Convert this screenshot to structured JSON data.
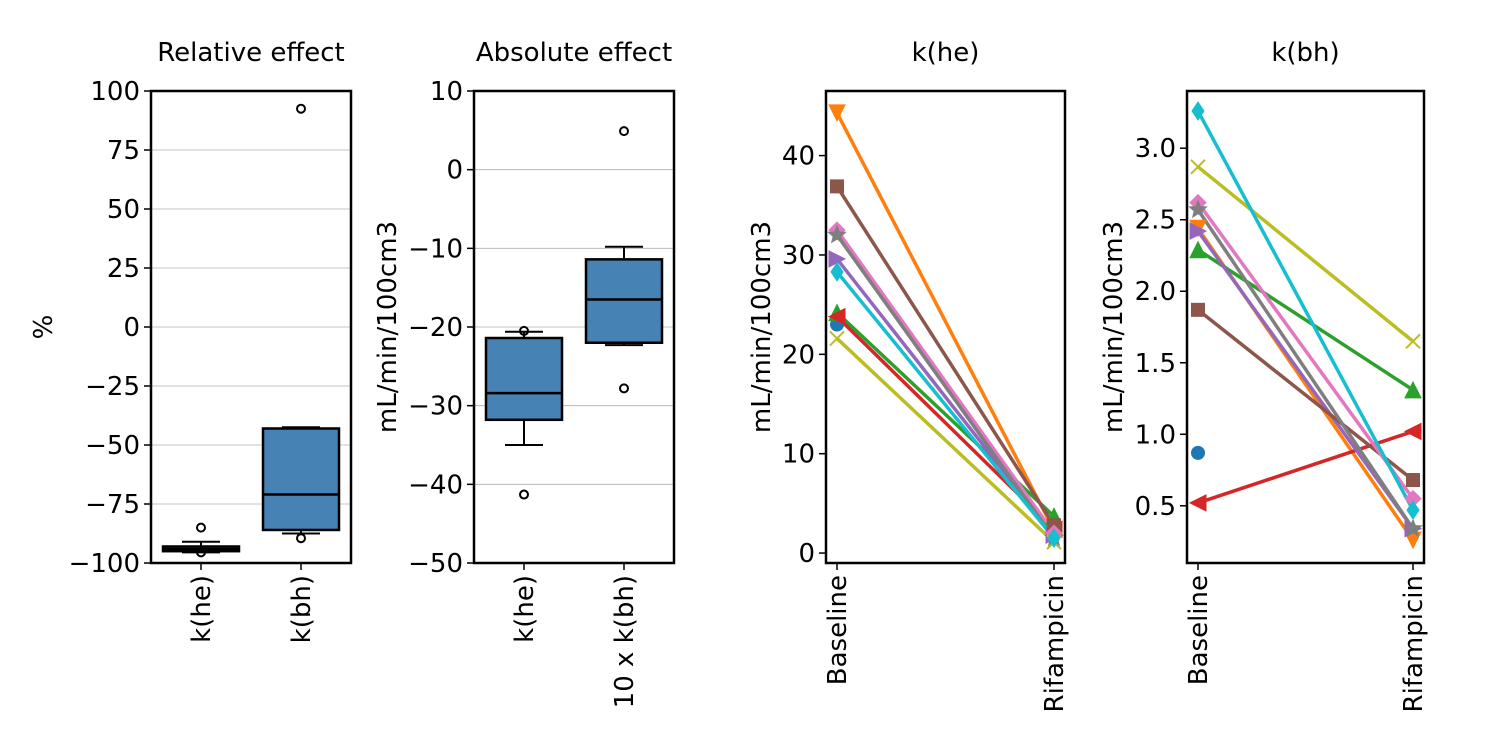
{
  "chart_data": [
    {
      "type": "box",
      "title": "Relative effect",
      "ylabel": "%",
      "xlabel": "",
      "categories": [
        "k(he)",
        "k(bh)"
      ],
      "ylim": [
        -100,
        100
      ],
      "yticks": [
        -100,
        -75,
        -50,
        -25,
        0,
        25,
        50,
        75,
        100
      ],
      "grid": "horizontal",
      "box_color": "#4682b4",
      "boxes": [
        {
          "whislo": -95.5,
          "q1": -95.0,
          "med": -94.0,
          "q3": -93.0,
          "whishi": -91.0,
          "fliers": [
            -85.0,
            -95.5
          ]
        },
        {
          "whislo": -87.5,
          "q1": -86.0,
          "med": -71.0,
          "q3": -43.0,
          "whishi": -42.5,
          "fliers": [
            92.5,
            -89.5
          ]
        }
      ]
    },
    {
      "type": "box",
      "title": "Absolute effect",
      "ylabel": "mL/min/100cm3",
      "xlabel": "",
      "categories": [
        "k(he)",
        "10 x k(bh)"
      ],
      "ylim": [
        -50,
        10
      ],
      "yticks": [
        -50,
        -40,
        -30,
        -20,
        -10,
        0,
        10
      ],
      "grid": "horizontal",
      "box_color": "#4682b4",
      "boxes": [
        {
          "whislo": -35.0,
          "q1": -31.8,
          "med": -28.4,
          "q3": -21.4,
          "whishi": -20.6,
          "fliers": [
            -20.5,
            -41.3
          ]
        },
        {
          "whislo": -22.3,
          "q1": -22.0,
          "med": -16.5,
          "q3": -11.4,
          "whishi": -9.8,
          "fliers": [
            4.9,
            -27.8
          ]
        }
      ]
    },
    {
      "type": "line",
      "title": "k(he)",
      "ylabel": "mL/min/100cm3",
      "xlabel": "",
      "categories": [
        "Baseline",
        "Rifampicin"
      ],
      "ylim": [
        -1,
        46.5
      ],
      "yticks": [
        0,
        10,
        20,
        30,
        40
      ],
      "grid": "off",
      "series": [
        {
          "color": "#1f77b4",
          "marker": "circle",
          "values": [
            23.0,
            null
          ]
        },
        {
          "color": "#ff7f0e",
          "marker": "triangle-down",
          "values": [
            44.3,
            2.3
          ]
        },
        {
          "color": "#2ca02c",
          "marker": "triangle-up",
          "values": [
            24.2,
            3.7
          ]
        },
        {
          "color": "#d62728",
          "marker": "triangle-left",
          "values": [
            23.8,
            2.4
          ]
        },
        {
          "color": "#9467bd",
          "marker": "triangle-right",
          "values": [
            29.6,
            1.8
          ]
        },
        {
          "color": "#8c564b",
          "marker": "square",
          "values": [
            36.9,
            2.8
          ]
        },
        {
          "color": "#e377c2",
          "marker": "diamond",
          "values": [
            32.5,
            2.0
          ]
        },
        {
          "color": "#7f7f7f",
          "marker": "star",
          "values": [
            32.0,
            1.5
          ]
        },
        {
          "color": "#bcbd22",
          "marker": "x",
          "values": [
            21.6,
            1.1
          ]
        },
        {
          "color": "#17becf",
          "marker": "thin-diamond",
          "values": [
            28.3,
            1.5
          ]
        }
      ]
    },
    {
      "type": "line",
      "title": "k(bh)",
      "ylabel": "mL/min/100cm3",
      "xlabel": "",
      "categories": [
        "Baseline",
        "Rifampicin"
      ],
      "ylim": [
        0.1,
        3.4
      ],
      "yticks": [
        0.5,
        1.0,
        1.5,
        2.0,
        2.5,
        3.0
      ],
      "yticklabels": [
        "0.5",
        "1.0",
        "1.5",
        "2.0",
        "2.5",
        "3.0"
      ],
      "grid": "off",
      "series": [
        {
          "color": "#1f77b4",
          "marker": "circle",
          "values": [
            0.87,
            null
          ]
        },
        {
          "color": "#ff7f0e",
          "marker": "triangle-down",
          "values": [
            2.44,
            0.26
          ]
        },
        {
          "color": "#2ca02c",
          "marker": "triangle-up",
          "values": [
            2.29,
            1.31
          ]
        },
        {
          "color": "#d62728",
          "marker": "triangle-left",
          "values": [
            0.52,
            1.02
          ]
        },
        {
          "color": "#9467bd",
          "marker": "triangle-right",
          "values": [
            2.42,
            0.34
          ]
        },
        {
          "color": "#8c564b",
          "marker": "square",
          "values": [
            1.87,
            0.68
          ]
        },
        {
          "color": "#e377c2",
          "marker": "diamond",
          "values": [
            2.62,
            0.55
          ]
        },
        {
          "color": "#7f7f7f",
          "marker": "star",
          "values": [
            2.57,
            0.34
          ]
        },
        {
          "color": "#bcbd22",
          "marker": "x",
          "values": [
            2.87,
            1.65
          ]
        },
        {
          "color": "#17becf",
          "marker": "thin-diamond",
          "values": [
            3.26,
            0.47
          ]
        }
      ]
    }
  ]
}
